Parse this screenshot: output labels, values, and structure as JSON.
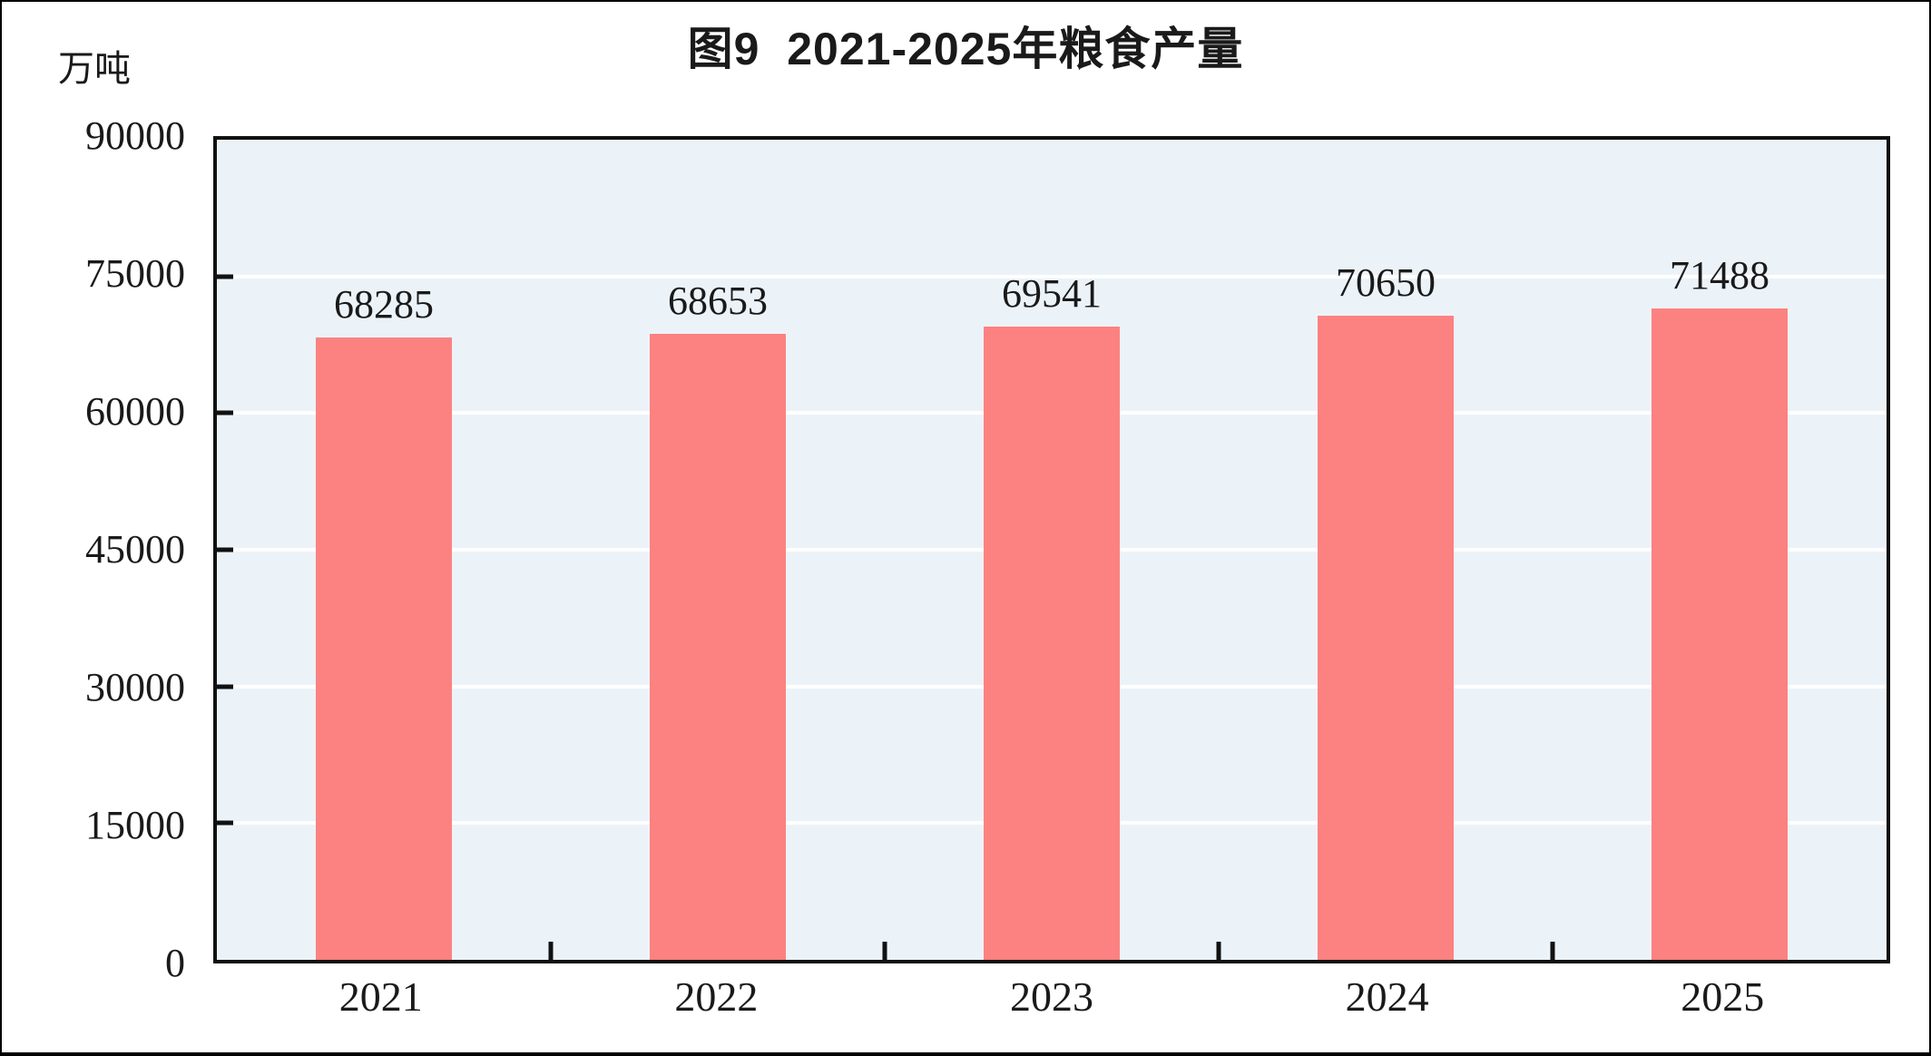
{
  "chart_data": {
    "type": "bar",
    "title": "图9  2021-2025年粮食产量",
    "ylabel": "万吨",
    "xlabel": "",
    "categories": [
      "2021",
      "2022",
      "2023",
      "2024",
      "2025"
    ],
    "values": [
      68285,
      68653,
      69541,
      70650,
      71488
    ],
    "ylim": [
      0,
      90000
    ],
    "yticks": [
      0,
      15000,
      30000,
      45000,
      60000,
      75000,
      90000
    ],
    "grid": "horizontal",
    "legend_position": "none",
    "bar_color": "#FC8181",
    "plot_bg": "#ECF3F8",
    "gridline_color": "#FFFFFF",
    "axis_color": "#111111",
    "text_color": "#1A1A1A"
  }
}
